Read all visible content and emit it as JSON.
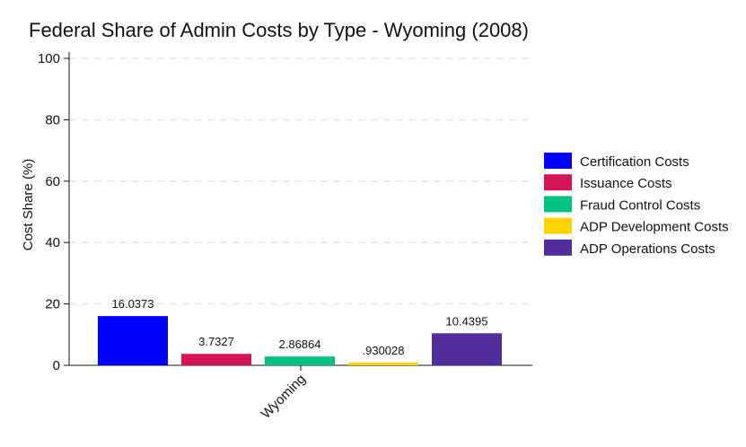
{
  "chart_data": {
    "type": "bar",
    "title": "Federal Share of Admin Costs by Type - Wyoming (2008)",
    "ylabel": "Cost Share (%)",
    "xlabel": "",
    "categories": [
      "Wyoming"
    ],
    "ylim": [
      0,
      100
    ],
    "yticks": [
      0,
      20,
      40,
      60,
      80,
      100
    ],
    "grid": "horizontal dashed",
    "legend_position": "right",
    "series": [
      {
        "name": "Certification Costs",
        "values": [
          16.0373
        ],
        "label": "16.0373",
        "color": "#0000ff"
      },
      {
        "name": "Issuance Costs",
        "values": [
          3.7327
        ],
        "label": "3.7327",
        "color": "#d6145a"
      },
      {
        "name": "Fraud Control Costs",
        "values": [
          2.86864
        ],
        "label": "2.86864",
        "color": "#00c383"
      },
      {
        "name": "ADP Development Costs",
        "values": [
          0.930028
        ],
        "label": ".930028",
        "color": "#ffd200"
      },
      {
        "name": "ADP Operations Costs",
        "values": [
          10.4395
        ],
        "label": "10.4395",
        "color": "#512d9b"
      }
    ]
  }
}
